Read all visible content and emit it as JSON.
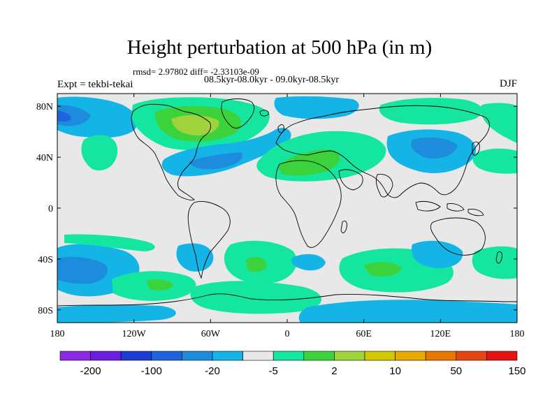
{
  "title": "Height perturbation at 500 hPa (in m)",
  "stats_line": "rmsd= 2.97802 diff= -2.33103e-09",
  "periods_line": "08.5kyr-08.0kyr - 09.0kyr-08.5kyr",
  "experiment": "Expt = tekbi-tekai",
  "season": "DJF",
  "map": {
    "projection": "cylindrical-equidistant",
    "lon_range": [
      -180,
      180
    ],
    "lat_range": [
      -90,
      90
    ],
    "lon_ticks": [
      "180",
      "120W",
      "60W",
      "0",
      "60E",
      "120E",
      "180"
    ],
    "lat_ticks": [
      "80N",
      "40N",
      "0",
      "40S",
      "80S"
    ],
    "background_color": "#e8e8e8",
    "coastline_color": "#000000"
  },
  "colorbar": {
    "colors": [
      "#8a2be2",
      "#6a1ee0",
      "#1e3cd2",
      "#1e64dc",
      "#1e8cdc",
      "#14b4e6",
      "#e8e8e8",
      "#14e6a0",
      "#3cd23c",
      "#a0d23c",
      "#d2c800",
      "#e6aa00",
      "#e67800",
      "#e64614",
      "#e61414"
    ],
    "labels": [
      "-200",
      "-100",
      "-20",
      "-5",
      "2",
      "10",
      "50",
      "150"
    ]
  }
}
